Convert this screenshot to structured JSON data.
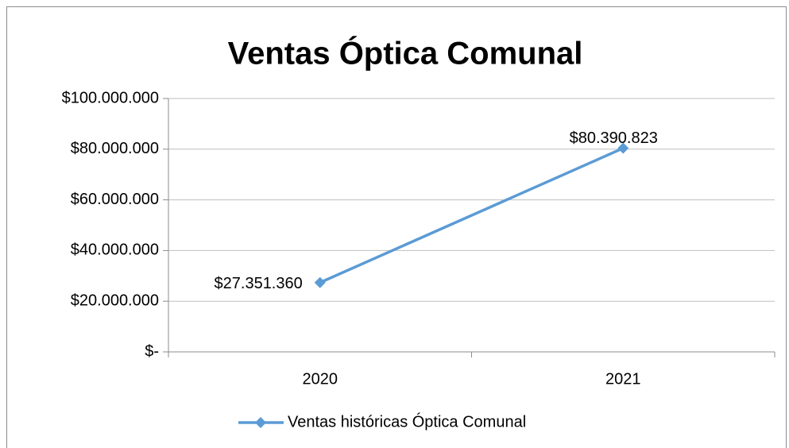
{
  "chart_data": {
    "type": "line",
    "title": "Ventas Óptica Comunal",
    "categories": [
      "2020",
      "2021"
    ],
    "series": [
      {
        "name": "Ventas históricas Óptica Comunal",
        "color": "#5b9bd5",
        "values": [
          27351360,
          80390823
        ],
        "value_labels": [
          "$27.351.360",
          "$80.390.823"
        ]
      }
    ],
    "ylim": [
      0,
      100000000
    ],
    "yticks": [
      {
        "value": 0,
        "label": "$-"
      },
      {
        "value": 20000000,
        "label": "$20.000.000"
      },
      {
        "value": 40000000,
        "label": "$40.000.000"
      },
      {
        "value": 60000000,
        "label": "$60.000.000"
      },
      {
        "value": 80000000,
        "label": "$80.000.000"
      },
      {
        "value": 100000000,
        "label": "$100.000.000"
      }
    ],
    "grid": true,
    "legend": "bottom"
  }
}
